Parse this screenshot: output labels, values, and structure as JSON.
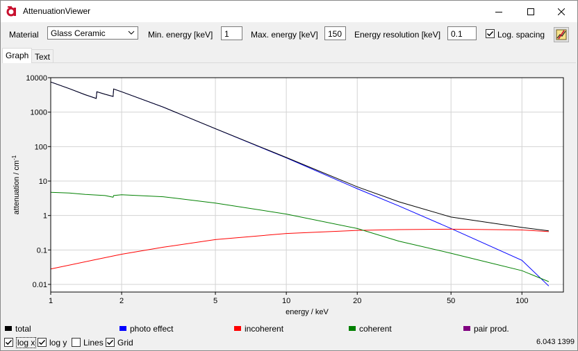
{
  "window": {
    "title": "AttenuationViewer"
  },
  "toolbar": {
    "material_label": "Material",
    "material_value": "Glass Ceramic",
    "min_energy_label": "Min. energy [keV]",
    "min_energy_value": "1",
    "max_energy_label": "Max. energy [keV]",
    "max_energy_value": "150",
    "resolution_label": "Energy resolution [keV]",
    "resolution_value": "0.1",
    "log_spacing_label": "Log. spacing",
    "log_spacing_checked": true
  },
  "tabs": [
    {
      "label": "Graph",
      "active": true
    },
    {
      "label": "Text",
      "active": false
    }
  ],
  "legend": [
    {
      "label": "total",
      "color": "#000000"
    },
    {
      "label": "photo effect",
      "color": "#0000ff"
    },
    {
      "label": "incoherent",
      "color": "#ff0000"
    },
    {
      "label": "coherent",
      "color": "#008000"
    },
    {
      "label": "pair prod.",
      "color": "#800080"
    }
  ],
  "options": [
    {
      "label": "log x",
      "checked": true
    },
    {
      "label": "log y",
      "checked": true
    },
    {
      "label": "Lines",
      "checked": false
    },
    {
      "label": "Grid",
      "checked": true
    }
  ],
  "status_text": "6.043 1399",
  "chart_data": {
    "type": "line",
    "xlabel": "energy / keV",
    "ylabel": "attenuation / cm",
    "ylabel_superscript": "-1",
    "x_scale": "log",
    "y_scale": "log",
    "xlim": [
      1,
      150
    ],
    "ylim": [
      0.006,
      10000
    ],
    "grid": true,
    "x_ticks": [
      {
        "value": 1,
        "label": "1"
      },
      {
        "value": 2,
        "label": "2"
      },
      {
        "value": 5,
        "label": "5"
      },
      {
        "value": 10,
        "label": "10"
      },
      {
        "value": 20,
        "label": "20"
      },
      {
        "value": 50,
        "label": "50"
      },
      {
        "value": 100,
        "label": "100"
      }
    ],
    "y_ticks": [
      {
        "value": 10000,
        "label": "10000"
      },
      {
        "value": 1000,
        "label": "1000"
      },
      {
        "value": 100,
        "label": "100"
      },
      {
        "value": 10,
        "label": "10"
      },
      {
        "value": 1,
        "label": "1"
      },
      {
        "value": 0.1,
        "label": "0.1"
      },
      {
        "value": 0.01,
        "label": "0.01"
      }
    ],
    "series": [
      {
        "name": "photo effect",
        "color": "#0000ff",
        "x": [
          1,
          1.2,
          1.4,
          1.56,
          1.57,
          1.7,
          1.84,
          1.85,
          2,
          3,
          5,
          10,
          20,
          30,
          50,
          100,
          130
        ],
        "y": [
          7500,
          4800,
          3200,
          2500,
          3900,
          3300,
          2850,
          4700,
          3900,
          1400,
          330,
          47,
          6.0,
          1.9,
          0.42,
          0.05,
          0.009
        ]
      },
      {
        "name": "incoherent",
        "color": "#ff0000",
        "x": [
          1,
          1.5,
          2,
          3,
          5,
          10,
          20,
          30,
          50,
          100,
          130
        ],
        "y": [
          0.028,
          0.05,
          0.075,
          0.12,
          0.2,
          0.3,
          0.37,
          0.39,
          0.4,
          0.38,
          0.34
        ]
      },
      {
        "name": "coherent",
        "color": "#008000",
        "x": [
          1,
          1.2,
          1.4,
          1.7,
          1.84,
          1.85,
          2,
          3,
          5,
          10,
          20,
          30,
          50,
          100,
          130
        ],
        "y": [
          4.7,
          4.5,
          4.1,
          3.8,
          3.4,
          3.8,
          4.0,
          3.5,
          2.3,
          1.1,
          0.42,
          0.18,
          0.08,
          0.025,
          0.012
        ]
      },
      {
        "name": "total",
        "color": "#000000",
        "x": [
          1,
          1.2,
          1.4,
          1.56,
          1.57,
          1.7,
          1.84,
          1.85,
          2,
          3,
          5,
          10,
          20,
          30,
          50,
          100,
          130
        ],
        "y": [
          7505,
          4805,
          3205,
          2505,
          3905,
          3305,
          2855,
          4705,
          3905,
          1405,
          333,
          48.4,
          6.8,
          2.5,
          0.9,
          0.45,
          0.36
        ]
      },
      {
        "name": "pair prod.",
        "color": "#800080",
        "x": [],
        "y": []
      }
    ]
  }
}
